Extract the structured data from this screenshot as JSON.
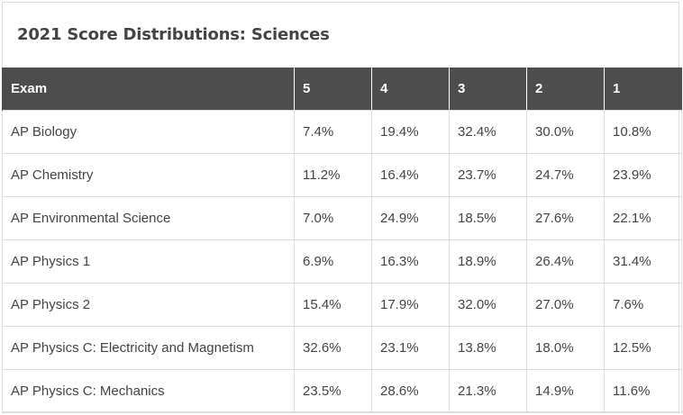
{
  "title": "2021 Score Distributions: Sciences",
  "table": {
    "headers": [
      "Exam",
      "5",
      "4",
      "3",
      "2",
      "1"
    ],
    "rows": [
      [
        "AP Biology",
        "7.4%",
        "19.4%",
        "32.4%",
        "30.0%",
        "10.8%"
      ],
      [
        "AP Chemistry",
        "11.2%",
        "16.4%",
        "23.7%",
        "24.7%",
        "23.9%"
      ],
      [
        "AP Environmental Science",
        "7.0%",
        "24.9%",
        "18.5%",
        "27.6%",
        "22.1%"
      ],
      [
        "AP Physics 1",
        "6.9%",
        "16.3%",
        "18.9%",
        "26.4%",
        "31.4%"
      ],
      [
        "AP Physics 2",
        "15.4%",
        "17.9%",
        "32.0%",
        "27.0%",
        "7.6%"
      ],
      [
        "AP Physics C: Electricity and Magnetism",
        "32.6%",
        "23.1%",
        "13.8%",
        "18.0%",
        "12.5%"
      ],
      [
        "AP Physics C: Mechanics",
        "23.5%",
        "28.6%",
        "21.3%",
        "14.9%",
        "11.6%"
      ]
    ]
  }
}
